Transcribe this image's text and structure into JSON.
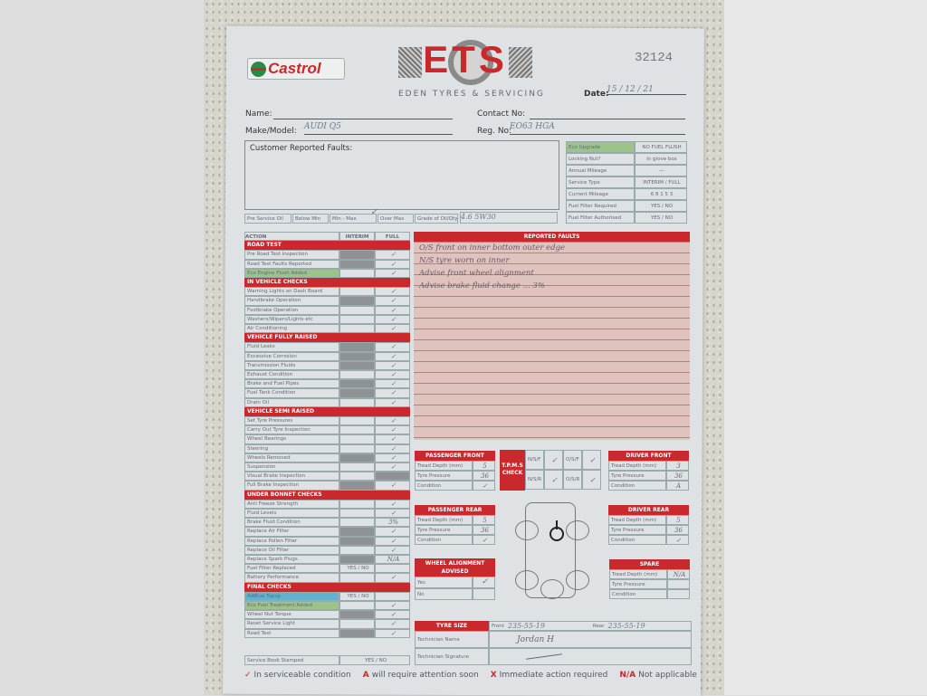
{
  "header": {
    "brand_left": "Castrol",
    "logo": "ETS",
    "company": "EDEN TYRES & SERVICING",
    "form_number": "32124",
    "date_label": "Date:",
    "date_value": "15 / 12 / 21",
    "name_label": "Name:",
    "name_value": "",
    "contact_label": "Contact No:",
    "contact_value": "",
    "make_label": "Make/Model:",
    "make_value": "AUDI Q5",
    "reg_label": "Reg. No:",
    "reg_value": "EO63 HGA",
    "faults_label": "Customer Reported Faults:"
  },
  "oil": {
    "pre": "Pre Service Oil",
    "below": "Below Min",
    "minmax": "Min - Max",
    "over": "Over Max",
    "grade_label": "Grade of Oil/Qty",
    "grade_value": "4.6  5W30",
    "checked": "Min - Max"
  },
  "info": [
    {
      "label": "Eco Upgrade",
      "value": "NO FUEL FLUSH",
      "green": true
    },
    {
      "label": "Locking Nut?",
      "value": "In glove box"
    },
    {
      "label": "Annual Mileage",
      "value": "—"
    },
    {
      "label": "Service Type",
      "value": "INTERIM / FULL",
      "circled": "FULL"
    },
    {
      "label": "Current Mileage",
      "value": "6 8 1 5 3"
    },
    {
      "label": "Fuel Filter Required",
      "value": "YES / NO",
      "circled": "NO"
    },
    {
      "label": "Fuel Filter Authorised",
      "value": "YES / NO",
      "circled": "NO"
    }
  ],
  "checklist": {
    "headers": [
      "ACTION",
      "INTERIM",
      "FULL"
    ],
    "rows": [
      {
        "s": "ROAD TEST"
      },
      {
        "l": "Pre Road Test Inspection",
        "shade": "interim",
        "f": "✓"
      },
      {
        "l": "Road Test Faults Reported",
        "shade": "interim",
        "f": "✓"
      },
      {
        "l": "Eco Engine Flush Added",
        "hl": "#9cc48a",
        "f": "✓"
      },
      {
        "s": "IN VEHICLE CHECKS"
      },
      {
        "l": "Warning Lights on Dash Board",
        "f": "✓"
      },
      {
        "l": "Handbrake Operation",
        "shade": "interim",
        "f": "✓"
      },
      {
        "l": "Footbrake Operation",
        "f": "✓"
      },
      {
        "l": "Washers/Wipers/Lights etc",
        "f": "✓"
      },
      {
        "l": "Air Conditioning",
        "f": "✓"
      },
      {
        "s": "VEHICLE FULLY RAISED"
      },
      {
        "l": "Fluid Leaks",
        "shade": "interim",
        "f": "✓"
      },
      {
        "l": "Excessive Corrosion",
        "shade": "interim",
        "f": "✓"
      },
      {
        "l": "Transmission Fluids",
        "shade": "interim",
        "f": "✓"
      },
      {
        "l": "Exhaust Condition",
        "f": "✓"
      },
      {
        "l": "Brake and Fuel Pipes",
        "shade": "interim",
        "f": "✓"
      },
      {
        "l": "Fuel Tank Condition",
        "shade": "interim",
        "f": "✓"
      },
      {
        "l": "Drain Oil",
        "f": "✓"
      },
      {
        "s": "VEHICLE SEMI RAISED"
      },
      {
        "l": "Set Tyre Pressures",
        "f": "✓"
      },
      {
        "l": "Carry Out Tyre Inspection",
        "f": "✓"
      },
      {
        "l": "Wheel Bearings",
        "f": "✓"
      },
      {
        "l": "Steering",
        "f": "✓"
      },
      {
        "l": "Wheels Removed",
        "shade": "interim",
        "f": "✓"
      },
      {
        "l": "Suspension",
        "f": "✓"
      },
      {
        "l": "Visual Brake Inspection",
        "shade": "full"
      },
      {
        "l": "Full Brake Inspection",
        "shade": "interim",
        "f": "✓"
      },
      {
        "s": "UNDER BONNET CHECKS"
      },
      {
        "l": "Anti Freeze Strength",
        "f": "✓"
      },
      {
        "l": "Fluid Levels",
        "f": "✓"
      },
      {
        "l": "Brake Fluid Condition",
        "f": "3%"
      },
      {
        "l": "Replace Air Filter",
        "shade": "interim",
        "f": "✓"
      },
      {
        "l": "Replace Pollen Filter",
        "shade": "interim",
        "f": "✓"
      },
      {
        "l": "Replace Oil Filter",
        "f": "✓"
      },
      {
        "l": "Replace Spark Plugs",
        "shade": "interim",
        "f": "N/A"
      },
      {
        "l": "Fuel Filter Replaced",
        "i": "YES / NO"
      },
      {
        "l": "Battery Performance",
        "f": "✓"
      },
      {
        "s": "FINAL CHECKS"
      },
      {
        "l": "AdBlue Topup",
        "hl": "#5fb3cf",
        "i": "YES / NO"
      },
      {
        "l": "Eco Fuel Treatment Added",
        "hl": "#9cc48a",
        "f": "✓"
      },
      {
        "l": "Wheel Nut Torque",
        "shade": "interim",
        "f": "✓"
      },
      {
        "l": "Reset Service Light",
        "f": "✓"
      },
      {
        "l": "Road Test",
        "shade": "interim",
        "f": "✓"
      }
    ],
    "service_book": {
      "l": "Service Book Stamped",
      "i": "YES / NO"
    }
  },
  "reported": {
    "title": "REPORTED FAULTS",
    "lines": [
      "O/S front on inner bottom outer edge",
      "N/S tyre worn on inner",
      "Advise front wheel alignment",
      "Advise brake fluid change ... 3%"
    ]
  },
  "tyres": {
    "pf": {
      "title": "PASSENGER FRONT",
      "rows": [
        [
          "Tread Depth (mm)",
          "5"
        ],
        [
          "Tyre Pressure",
          "36"
        ],
        [
          "Condition",
          "✓"
        ]
      ]
    },
    "pr": {
      "title": "PASSENGER REAR",
      "rows": [
        [
          "Tread Depth (mm)",
          "5"
        ],
        [
          "Tyre Pressure",
          "36"
        ],
        [
          "Condition",
          "✓"
        ]
      ]
    },
    "df": {
      "title": "DRIVER FRONT",
      "rows": [
        [
          "Tread Depth (mm)",
          "3"
        ],
        [
          "Tyre Pressure",
          "36"
        ],
        [
          "Condition",
          "A"
        ]
      ]
    },
    "dr": {
      "title": "DRIVER REAR",
      "rows": [
        [
          "Tread Depth (mm)",
          "5"
        ],
        [
          "Tyre Pressure",
          "36"
        ],
        [
          "Condition",
          "✓"
        ]
      ]
    },
    "sp": {
      "title": "SPARE",
      "rows": [
        [
          "Tread Depth (mm)",
          "N/A"
        ],
        [
          "Tyre Pressure",
          ""
        ],
        [
          "Condition",
          ""
        ]
      ]
    }
  },
  "tpms": {
    "title": "T.P.M.S CHECK",
    "cells": [
      [
        "N/S/F",
        "✓",
        "O/S/F",
        "✓"
      ],
      [
        "N/S/R",
        "✓",
        "O/S/R",
        "✓"
      ]
    ]
  },
  "alignment": {
    "title": "WHEEL ALIGNMENT ADVISED",
    "yes": "Yes",
    "no": "No",
    "yes_mark": "✓"
  },
  "tyre_size": {
    "title": "TYRE SIZE",
    "front_label": "Front",
    "front_value": "235-55-19",
    "rear_label": "Rear",
    "rear_value": "235-55-19",
    "tech_name_label": "Technician Name",
    "tech_name_value": "Jordan H",
    "tech_sig_label": "Technician Signature"
  },
  "legend": [
    {
      "sym": "✓",
      "text": "In serviceable condition"
    },
    {
      "sym": "A",
      "text": "will require attention soon"
    },
    {
      "sym": "X",
      "text": "Immediate action required"
    },
    {
      "sym": "N/A",
      "text": "Not applicable"
    }
  ],
  "colors": {
    "accent": "#c9282c",
    "eco_green": "#9cc48a",
    "adblue": "#5fb3cf"
  }
}
